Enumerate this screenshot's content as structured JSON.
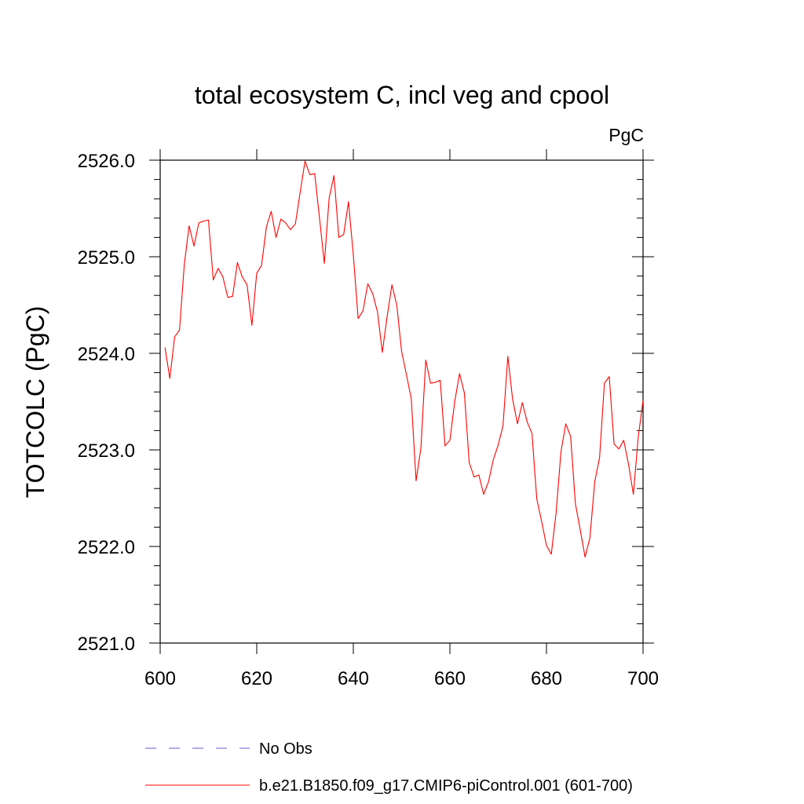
{
  "chart_data": {
    "type": "line",
    "title": "total ecosystem C, incl veg and cpool",
    "units": "PgC",
    "ylabel": "TOTCOLC  (PgC)",
    "xlabel": "",
    "xlim": [
      600,
      700
    ],
    "ylim": [
      2521.0,
      2526.0
    ],
    "xticks": [
      600,
      620,
      640,
      660,
      680,
      700
    ],
    "xtick_labels": [
      "600",
      "620",
      "640",
      "660",
      "680",
      "700"
    ],
    "yticks": [
      2521.0,
      2522.0,
      2523.0,
      2524.0,
      2525.0,
      2526.0
    ],
    "ytick_labels": [
      "2521.0",
      "2522.0",
      "2523.0",
      "2524.0",
      "2525.0",
      "2526.0"
    ],
    "grid": false,
    "legend_position": "bottom",
    "series": [
      {
        "name": "b.e21.B1850.f09_g17.CMIP6-piControl.001 (601-700)",
        "color": "#ff0000",
        "style": "solid",
        "x": [
          601,
          602,
          603,
          604,
          605,
          606,
          607,
          608,
          609,
          610,
          611,
          612,
          613,
          614,
          615,
          616,
          617,
          618,
          619,
          620,
          621,
          622,
          623,
          624,
          625,
          626,
          627,
          628,
          629,
          630,
          631,
          632,
          633,
          634,
          635,
          636,
          637,
          638,
          639,
          640,
          641,
          642,
          643,
          644,
          645,
          646,
          647,
          648,
          649,
          650,
          651,
          652,
          653,
          654,
          655,
          656,
          657,
          658,
          659,
          660,
          661,
          662,
          663,
          664,
          665,
          666,
          667,
          668,
          669,
          670,
          671,
          672,
          673,
          674,
          675,
          676,
          677,
          678,
          679,
          680,
          681,
          682,
          683,
          684,
          685,
          686,
          687,
          688,
          689,
          690,
          691,
          692,
          693,
          694,
          695,
          696,
          697,
          698,
          699,
          700
        ],
        "values": [
          2524.06,
          2523.74,
          2524.17,
          2524.24,
          2524.92,
          2525.32,
          2525.11,
          2525.35,
          2525.37,
          2525.38,
          2524.76,
          2524.88,
          2524.79,
          2524.58,
          2524.59,
          2524.94,
          2524.79,
          2524.71,
          2524.29,
          2524.83,
          2524.91,
          2525.31,
          2525.47,
          2525.2,
          2525.39,
          2525.35,
          2525.28,
          2525.34,
          2525.67,
          2525.99,
          2525.85,
          2525.86,
          2525.4,
          2524.93,
          2525.61,
          2525.84,
          2525.2,
          2525.23,
          2525.57,
          2525.02,
          2524.36,
          2524.44,
          2524.72,
          2524.62,
          2524.43,
          2524.01,
          2524.38,
          2524.71,
          2524.5,
          2524.02,
          2523.78,
          2523.53,
          2522.68,
          2523.02,
          2523.93,
          2523.69,
          2523.7,
          2523.72,
          2523.04,
          2523.1,
          2523.5,
          2523.79,
          2523.59,
          2522.87,
          2522.72,
          2522.74,
          2522.54,
          2522.67,
          2522.9,
          2523.05,
          2523.25,
          2523.97,
          2523.52,
          2523.27,
          2523.49,
          2523.29,
          2523.17,
          2522.49,
          2522.26,
          2522.01,
          2521.92,
          2522.35,
          2522.98,
          2523.27,
          2523.14,
          2522.44,
          2522.17,
          2521.89,
          2522.09,
          2522.67,
          2522.92,
          2523.69,
          2523.76,
          2523.06,
          2523.01,
          2523.1,
          2522.85,
          2522.54,
          2523.13,
          2523.51
        ]
      },
      {
        "name": "No Obs",
        "color": "#6a5acd",
        "style": "dashed",
        "x": [],
        "values": []
      }
    ]
  }
}
